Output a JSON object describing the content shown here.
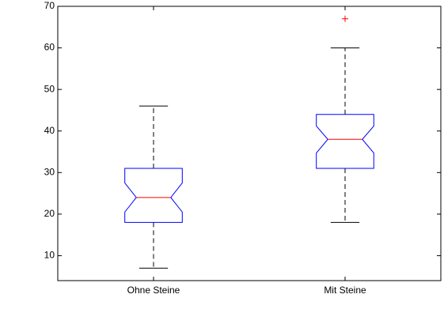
{
  "chart_data": {
    "type": "box",
    "categories": [
      "Ohne Steine",
      "Mit Steine"
    ],
    "boxes": [
      {
        "whisker_low": 7,
        "q1": 18,
        "notch_low": 20.5,
        "median": 24,
        "notch_high": 27.5,
        "q3": 31,
        "whisker_high": 46,
        "outliers": []
      },
      {
        "whisker_low": 18,
        "q1": 31,
        "notch_low": 34.7,
        "median": 38,
        "notch_high": 41.2,
        "q3": 44,
        "whisker_high": 60,
        "outliers": [
          67
        ]
      }
    ],
    "ylim": [
      4,
      70
    ],
    "yticks": [
      10,
      20,
      30,
      40,
      50,
      60,
      70
    ],
    "box_color": "#0000ff",
    "median_color": "#ff0000",
    "whisker_color": "#000000",
    "outlier_color": "#ff0000"
  }
}
